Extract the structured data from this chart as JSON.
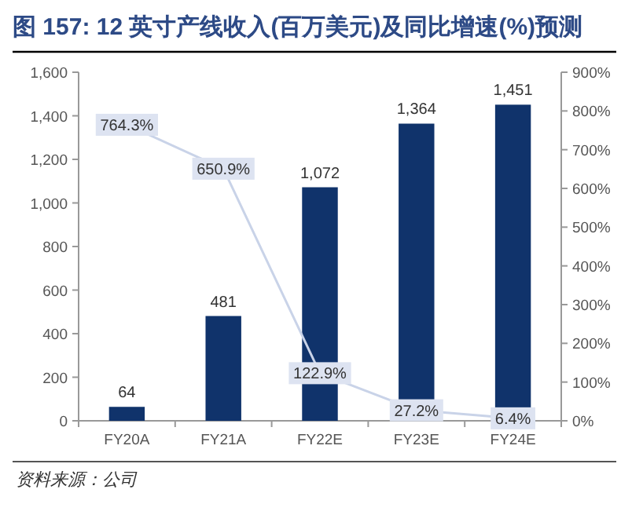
{
  "chart_data": {
    "type": "bar",
    "title": "图 157: 12 英寸产线收入(百万美元)及同比增速(%)预测",
    "categories": [
      "FY20A",
      "FY21A",
      "FY22E",
      "FY23E",
      "FY24E"
    ],
    "series": [
      {
        "color": "#10336b",
        "values": [
          64,
          481,
          1072,
          1364,
          1451
        ],
        "value_labels": [
          "64",
          "481",
          "1,072",
          "1,364",
          "1,451"
        ]
      },
      {
        "type": "line",
        "axis": "y2",
        "marker": "square",
        "color": "#c9d3e8",
        "values": [
          764.3,
          650.9,
          122.9,
          27.2,
          6.4
        ],
        "value_labels": [
          "764.3%",
          "650.9%",
          "122.9%",
          "27.2%",
          "6.4%"
        ]
      }
    ],
    "ylim": [
      0,
      1600
    ],
    "yticks": [
      0,
      200,
      400,
      600,
      800,
      {
        "value": 1000,
        "label": "1,000"
      },
      {
        "value": 1200,
        "label": "1,200"
      },
      {
        "value": 1400,
        "label": "1,400"
      },
      {
        "value": 1600,
        "label": "1,600"
      }
    ],
    "y2lim": [
      0,
      900
    ],
    "y2ticks": [
      {
        "value": 0,
        "label": "0%"
      },
      {
        "value": 100,
        "label": "100%"
      },
      {
        "value": 200,
        "label": "200%"
      },
      {
        "value": 300,
        "label": "300%"
      },
      {
        "value": 400,
        "label": "400%"
      },
      {
        "value": 500,
        "label": "500%"
      },
      {
        "value": 600,
        "label": "600%"
      },
      {
        "value": 700,
        "label": "700%"
      },
      {
        "value": 800,
        "label": "800%"
      },
      {
        "value": 900,
        "label": "900%"
      }
    ],
    "grid": false,
    "annotations": [
      "资料来源：公司"
    ]
  }
}
